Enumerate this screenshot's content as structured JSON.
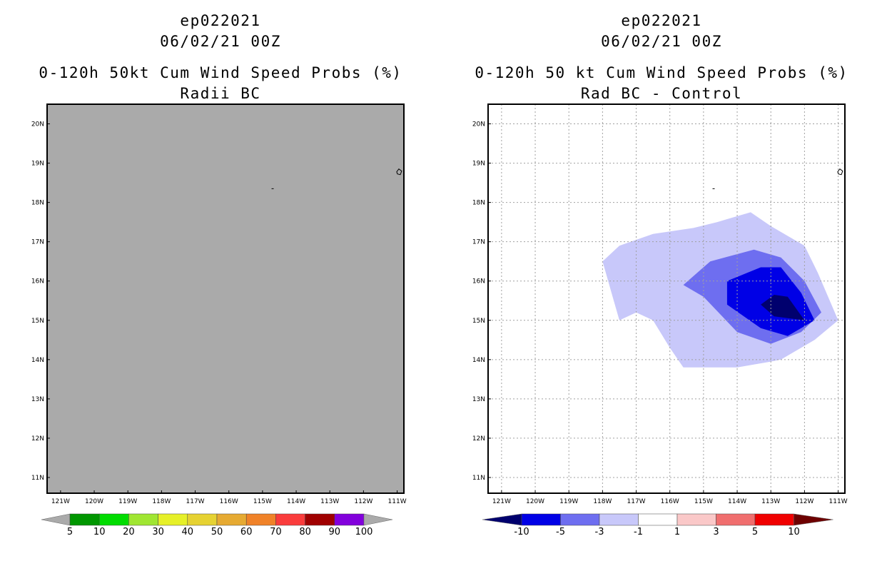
{
  "panels": [
    {
      "header": {
        "storm_id": "ep022021",
        "datetime": "06/02/21 00Z",
        "title": "0-120h 50kt Cum Wind Speed Probs (%)",
        "subtitle": "Radii BC"
      },
      "colorbar": {
        "labels": [
          "5",
          "10",
          "20",
          "30",
          "40",
          "50",
          "60",
          "70",
          "80",
          "90",
          "100"
        ]
      }
    },
    {
      "header": {
        "storm_id": "ep022021",
        "datetime": "06/02/21 00Z",
        "title": "0-120h 50 kt Cum Wind Speed Probs (%)",
        "subtitle": "Rad BC - Control"
      },
      "colorbar": {
        "labels": [
          "-10",
          "-5",
          "-3",
          "-1",
          "1",
          "3",
          "5",
          "10"
        ]
      }
    }
  ],
  "chart_data": [
    {
      "type": "heatmap",
      "title": "0-120h 50kt Cum Wind Speed Probs (%) - Radii BC",
      "x_ticks": [
        "121W",
        "120W",
        "119W",
        "118W",
        "117W",
        "116W",
        "115W",
        "114W",
        "113W",
        "112W",
        "111W"
      ],
      "y_ticks": [
        "20N",
        "19N",
        "18N",
        "17N",
        "16N",
        "15N",
        "14N",
        "13N",
        "12N",
        "11N"
      ],
      "xlim": [
        -121.4,
        -110.8
      ],
      "ylim": [
        10.6,
        20.5
      ],
      "grid": false,
      "levels": [
        5,
        10,
        20,
        30,
        40,
        50,
        60,
        70,
        80,
        90,
        100
      ],
      "colors": {
        "background": "#aaaaaa",
        "bins": [
          "#009600",
          "#00dc00",
          "#a0e632",
          "#e6f028",
          "#e6d232",
          "#e6aa32",
          "#f08228",
          "#fa3c3c",
          "#a00000",
          "#8200dc"
        ],
        "arrow_low": "#aaaaaa",
        "arrow_high": "#aaaaaa"
      },
      "islands": [
        {
          "name": "clarion-island",
          "lon": -114.7,
          "lat": 18.35
        },
        {
          "name": "socorro-island",
          "lon": -110.95,
          "lat": 18.78
        }
      ],
      "contours": []
    },
    {
      "type": "heatmap",
      "title": "0-120h 50 kt Cum Wind Speed Probs (%) - Rad BC - Control",
      "x_ticks": [
        "121W",
        "120W",
        "119W",
        "118W",
        "117W",
        "116W",
        "115W",
        "114W",
        "113W",
        "112W",
        "111W"
      ],
      "y_ticks": [
        "20N",
        "19N",
        "18N",
        "17N",
        "16N",
        "15N",
        "14N",
        "13N",
        "12N",
        "11N"
      ],
      "xlim": [
        -121.4,
        -110.8
      ],
      "ylim": [
        10.6,
        20.5
      ],
      "grid": true,
      "levels": [
        -10,
        -5,
        -3,
        -1,
        1,
        3,
        5,
        10
      ],
      "colors": {
        "background": "#ffffff",
        "bins": [
          "#0000e6",
          "#6e6ef0",
          "#c8c8fa",
          "#ffffff",
          "#fac8c8",
          "#f06e6e",
          "#f00000"
        ],
        "arrow_low": "#00006e",
        "arrow_high": "#6e0000"
      },
      "islands": [
        {
          "name": "clarion-island",
          "lon": -114.7,
          "lat": 18.35
        },
        {
          "name": "socorro-island",
          "lon": -110.95,
          "lat": 18.78
        }
      ],
      "contours": [
        {
          "range": "-3 to -1",
          "color": "#c8c8fa",
          "points": [
            [
              -118.0,
              16.5
            ],
            [
              -117.5,
              16.9
            ],
            [
              -116.5,
              17.2
            ],
            [
              -115.3,
              17.35
            ],
            [
              -114.6,
              17.5
            ],
            [
              -113.6,
              17.75
            ],
            [
              -113.0,
              17.4
            ],
            [
              -112.0,
              16.9
            ],
            [
              -111.6,
              16.2
            ],
            [
              -111.0,
              15.0
            ],
            [
              -111.7,
              14.5
            ],
            [
              -112.7,
              14.0
            ],
            [
              -113.0,
              13.95
            ],
            [
              -114.0,
              13.8
            ],
            [
              -115.0,
              13.8
            ],
            [
              -115.6,
              13.8
            ],
            [
              -116.0,
              14.3
            ],
            [
              -116.5,
              15.0
            ],
            [
              -117.0,
              15.2
            ],
            [
              -117.5,
              15.0
            ],
            [
              -117.7,
              15.6
            ]
          ]
        },
        {
          "range": "-5 to -3",
          "color": "#6e6ef0",
          "points": [
            [
              -115.6,
              15.9
            ],
            [
              -114.8,
              16.5
            ],
            [
              -113.5,
              16.8
            ],
            [
              -112.7,
              16.6
            ],
            [
              -112.0,
              16.0
            ],
            [
              -111.5,
              15.2
            ],
            [
              -112.1,
              14.7
            ],
            [
              -113.0,
              14.4
            ],
            [
              -114.0,
              14.7
            ],
            [
              -115.0,
              15.6
            ]
          ]
        },
        {
          "range": "-10 to -5",
          "color": "#0000e6",
          "points": [
            [
              -114.3,
              16.0
            ],
            [
              -113.3,
              16.35
            ],
            [
              -112.7,
              16.35
            ],
            [
              -112.1,
              15.7
            ],
            [
              -111.7,
              15.0
            ],
            [
              -112.5,
              14.6
            ],
            [
              -113.3,
              14.8
            ],
            [
              -114.3,
              15.4
            ]
          ]
        },
        {
          "range": "below -10",
          "color": "#00006e",
          "points": [
            [
              -113.3,
              15.4
            ],
            [
              -112.9,
              15.65
            ],
            [
              -112.5,
              15.6
            ],
            [
              -112.0,
              15.0
            ],
            [
              -112.9,
              15.1
            ]
          ]
        }
      ]
    }
  ]
}
